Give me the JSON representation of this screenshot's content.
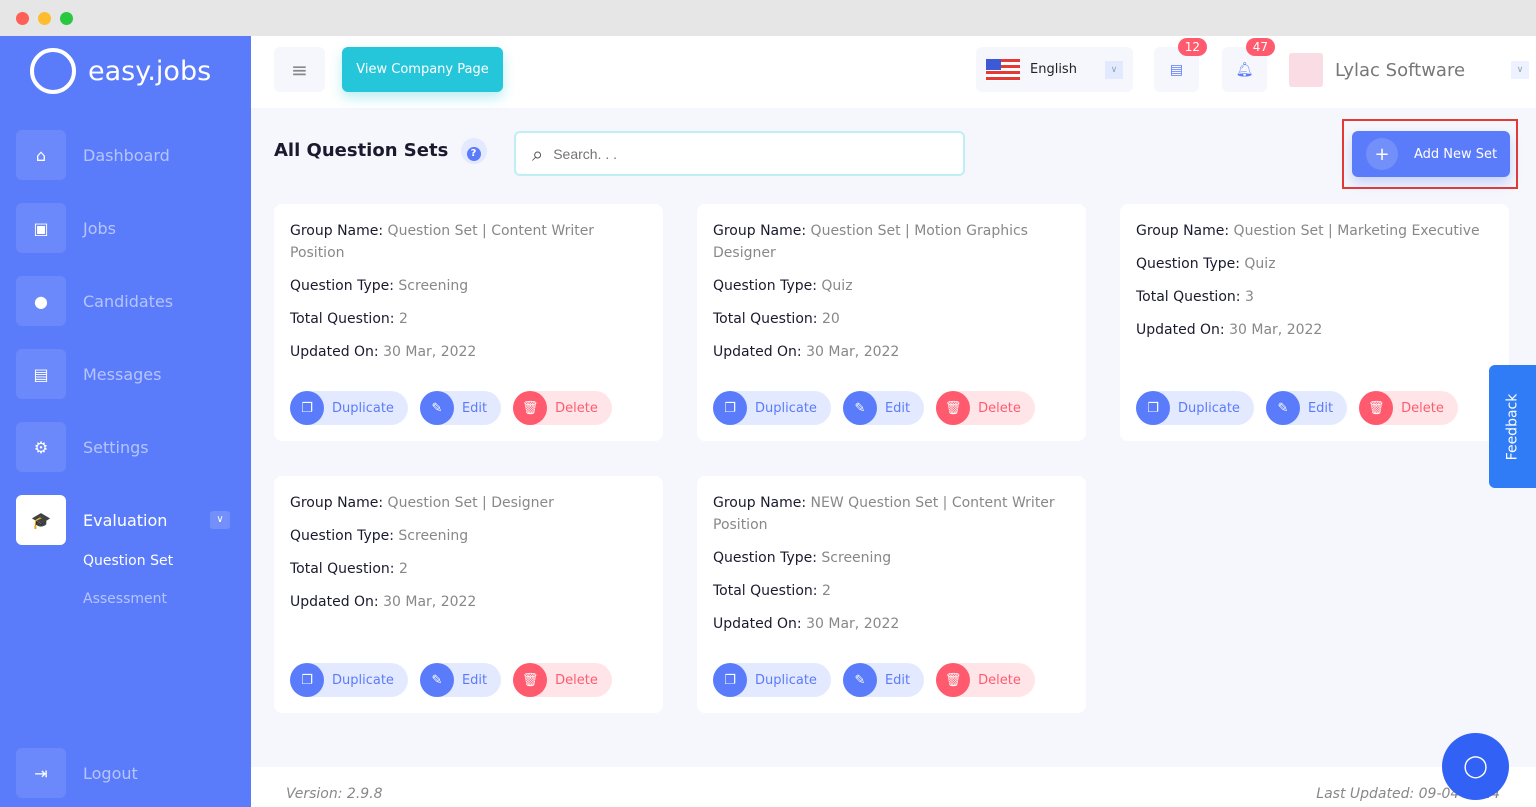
{
  "app": {
    "logo_text": "easy.jobs"
  },
  "sidebar": {
    "items": [
      {
        "label": "Dashboard",
        "icon": "home-icon",
        "glyph": "⌂"
      },
      {
        "label": "Jobs",
        "icon": "briefcase-icon",
        "glyph": "▣"
      },
      {
        "label": "Candidates",
        "icon": "user-icon",
        "glyph": "●"
      },
      {
        "label": "Messages",
        "icon": "chat-icon",
        "glyph": "▤"
      },
      {
        "label": "Settings",
        "icon": "gear-icon",
        "glyph": "⚙"
      },
      {
        "label": "Evaluation",
        "icon": "graduation-cap-icon",
        "glyph": "🎓",
        "active": true
      }
    ],
    "subitems": [
      {
        "label": "Question Set",
        "active": true
      },
      {
        "label": "Assessment"
      }
    ],
    "logout": "Logout"
  },
  "header": {
    "view_company": "View Company Page",
    "language": "English",
    "messages_count": "12",
    "notifications_count": "47",
    "company": "Lylac Software"
  },
  "page": {
    "title": "All Question Sets",
    "search_placeholder": "Search. . .",
    "add_button": "Add New Set"
  },
  "labels": {
    "group": "Group Name:",
    "type": "Question Type:",
    "total": "Total Question:",
    "updated": "Updated On:",
    "duplicate": "Duplicate",
    "edit": "Edit",
    "delete": "Delete"
  },
  "cards": [
    {
      "group": "Question Set | Content Writer Position",
      "type": "Screening",
      "total": "2",
      "updated": "30 Mar, 2022"
    },
    {
      "group": "Question Set | Motion Graphics Designer",
      "type": "Quiz",
      "total": "20",
      "updated": "30 Mar, 2022"
    },
    {
      "group": "Question Set | Marketing Executive",
      "type": "Quiz",
      "total": "3",
      "updated": "30 Mar, 2022"
    },
    {
      "group": "Question Set | Designer",
      "type": "Screening",
      "total": "2",
      "updated": "30 Mar, 2022"
    },
    {
      "group": "NEW Question Set | Content Writer Position",
      "type": "Screening",
      "total": "2",
      "updated": "30 Mar, 2022"
    }
  ],
  "footer": {
    "version": "Version: 2.9.8",
    "last_updated": "Last Updated: 09-04-2024"
  },
  "feedback": "Feedback",
  "colors": {
    "primary": "#5b7cfa",
    "accent": "#26c6da",
    "danger": "#ff5a6e",
    "highlight": "#e53935"
  }
}
